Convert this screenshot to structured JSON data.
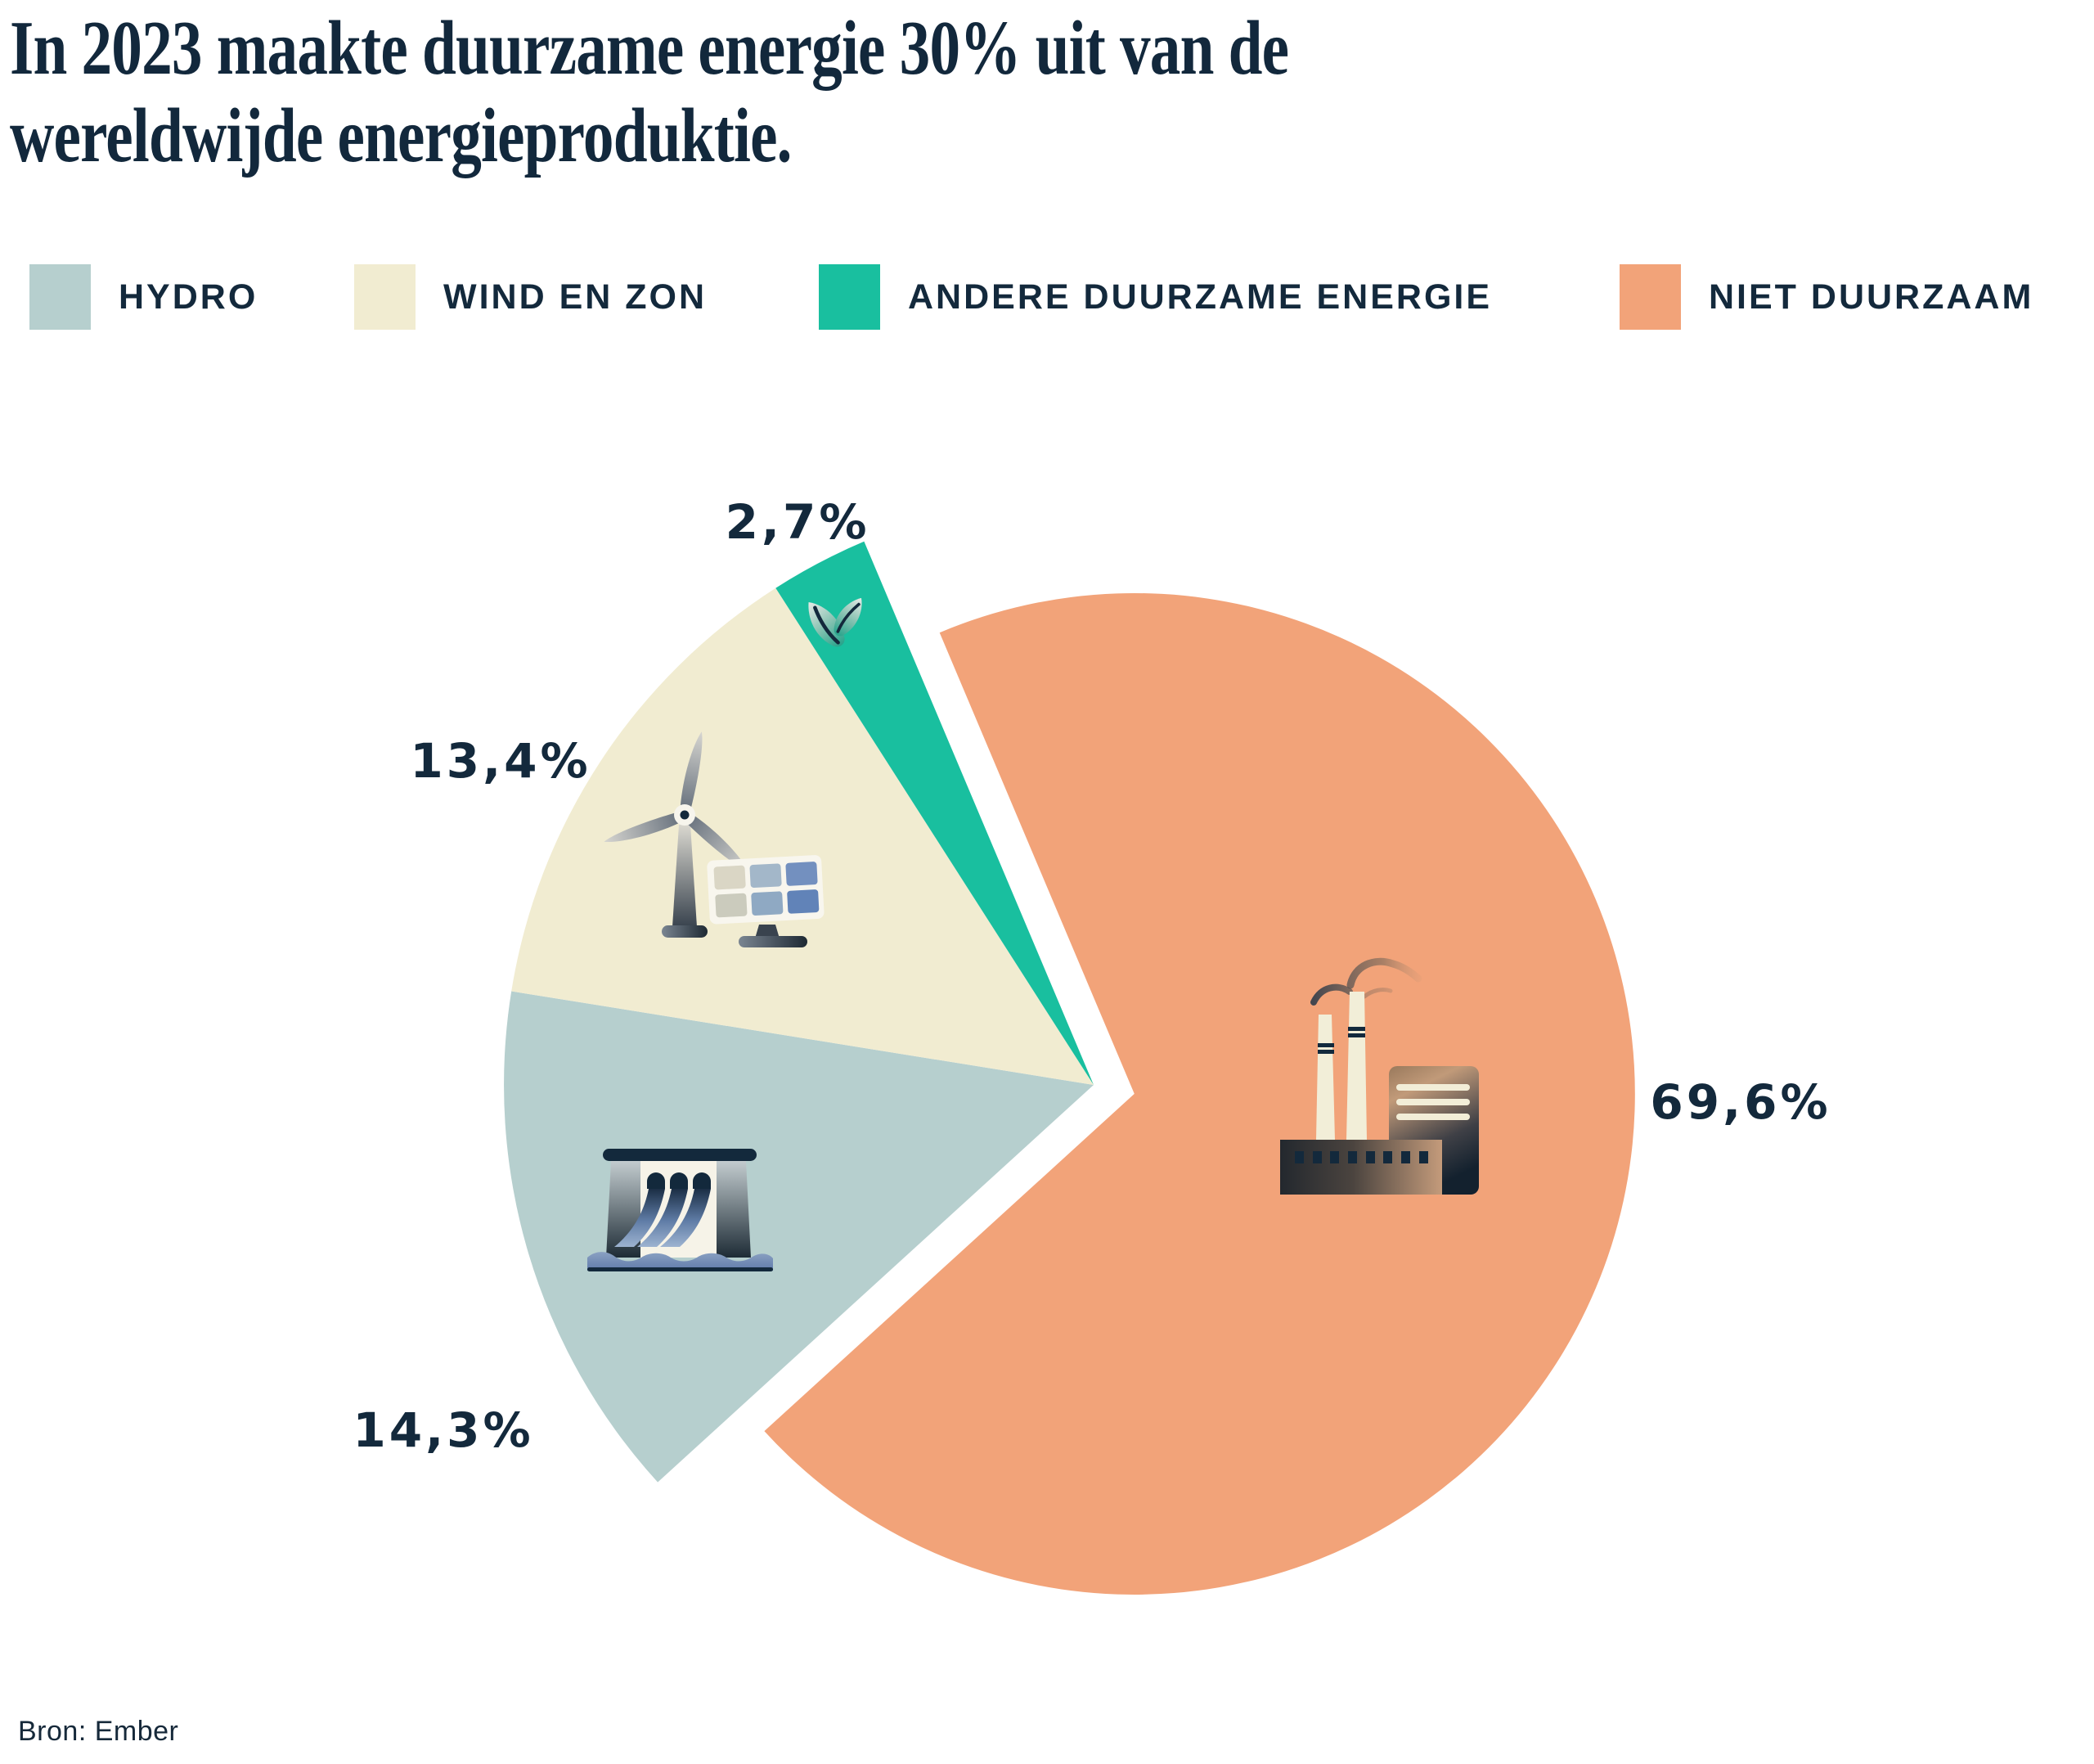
{
  "page": {
    "background": "#FFFFFF",
    "text_color": "#13293C"
  },
  "title": {
    "line1": "In 2023 maakte duurzame energie 30% uit van de",
    "line2": "wereldwijde energieproduktie."
  },
  "source": {
    "text": "Bron: Ember"
  },
  "chart_data": {
    "type": "pie",
    "title": "In 2023 maakte duurzame energie 30% uit van de wereldwijde energieproduktie.",
    "unit": "percent",
    "total": 100,
    "legend_position": "top",
    "grid": false,
    "slices": [
      {
        "label": "HYDRO",
        "value": 14.3,
        "display_label": "14,3%",
        "color": "#B6CFCE",
        "icon": "hydro-dam-icon",
        "exploded": false
      },
      {
        "label": "WIND EN ZON",
        "value": 13.4,
        "display_label": "13,4%",
        "color": "#F1ECD1",
        "icon": "wind-turbine-solar-panel-icon",
        "exploded": false
      },
      {
        "label": "ANDERE DUURZAME ENERGIE",
        "value": 2.7,
        "display_label": "2,7%",
        "color": "#19BF9F",
        "icon": "leaf-icon",
        "exploded": false
      },
      {
        "label": "NIET DUURZAAM",
        "value": 69.6,
        "display_label": "69,6%",
        "color": "#F2A379",
        "icon": "factory-icon",
        "exploded": true
      }
    ]
  }
}
